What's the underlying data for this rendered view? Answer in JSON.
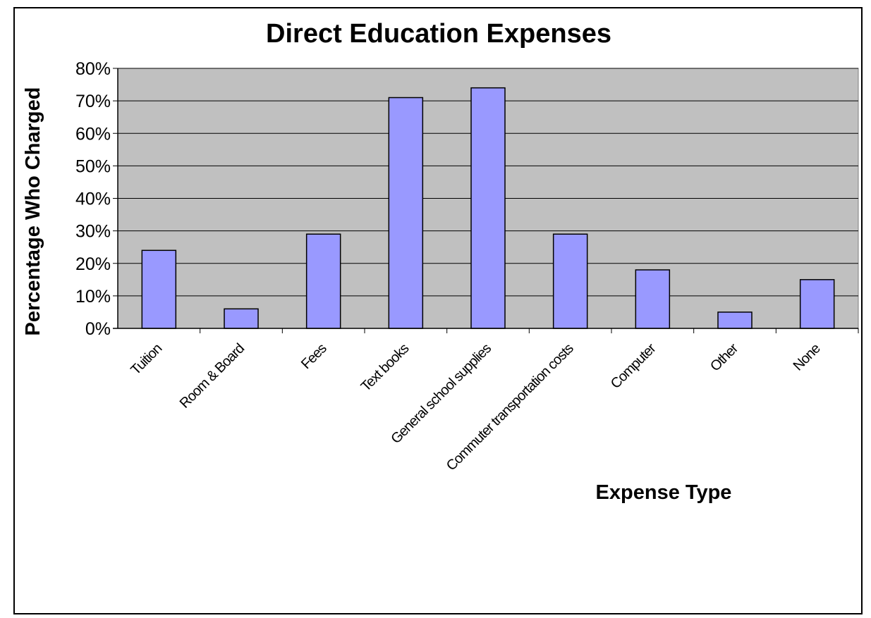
{
  "chart_data": {
    "type": "bar",
    "title": "Direct Education Expenses",
    "xlabel": "Expense Type",
    "ylabel": "Percentage Who Charged",
    "categories": [
      "Tuition",
      "Room & Board",
      "Fees",
      "Text books",
      "General school supplies",
      "Commuter transportation costs",
      "Computer",
      "Other",
      "None"
    ],
    "series": [
      {
        "values": [
          0.24,
          0.06,
          0.29,
          0.71,
          0.74,
          0.29,
          0.18,
          0.05,
          0.15
        ]
      }
    ],
    "yticks": [
      "0%",
      "10%",
      "20%",
      "30%",
      "40%",
      "50%",
      "60%",
      "70%",
      "80%"
    ],
    "ylim": [
      0,
      0.8
    ],
    "grid": true,
    "legend": "none",
    "colors": {
      "bar": "#9999ff",
      "plot_background": "#c0c0c0",
      "grid": "#000000",
      "outline": "#000000"
    }
  }
}
